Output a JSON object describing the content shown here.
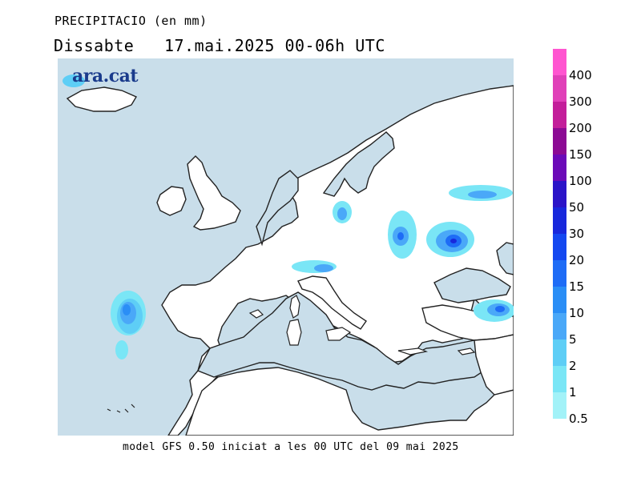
{
  "header": {
    "title": "PRECIPITACIO (en mm)",
    "subtitle": "Dissabte   17.mai.2025 00-06h UTC"
  },
  "logo": {
    "text": "ara.cat"
  },
  "footer": {
    "text": "model GFS 0.50 iniciat a les 00 UTC del 09 mai 2025"
  },
  "colors": {
    "sea": "#c9deea",
    "land": "#ffffff",
    "coast": "#222222"
  },
  "legend": {
    "items": [
      {
        "label": "400",
        "color": "#ff55d0"
      },
      {
        "label": "300",
        "color": "#e040b8"
      },
      {
        "label": "200",
        "color": "#c31e9a"
      },
      {
        "label": "150",
        "color": "#8c0a94"
      },
      {
        "label": "100",
        "color": "#6b0ab8"
      },
      {
        "label": "50",
        "color": "#2b14c8"
      },
      {
        "label": "30",
        "color": "#1828dc"
      },
      {
        "label": "20",
        "color": "#1448f0"
      },
      {
        "label": "15",
        "color": "#1e6cf6"
      },
      {
        "label": "10",
        "color": "#2a8ef6"
      },
      {
        "label": "5",
        "color": "#4aa8f8"
      },
      {
        "label": "2",
        "color": "#5ecef6"
      },
      {
        "label": "1",
        "color": "#7ae6f6"
      },
      {
        "label": "0.5",
        "color": "#a2f2f8"
      }
    ]
  }
}
